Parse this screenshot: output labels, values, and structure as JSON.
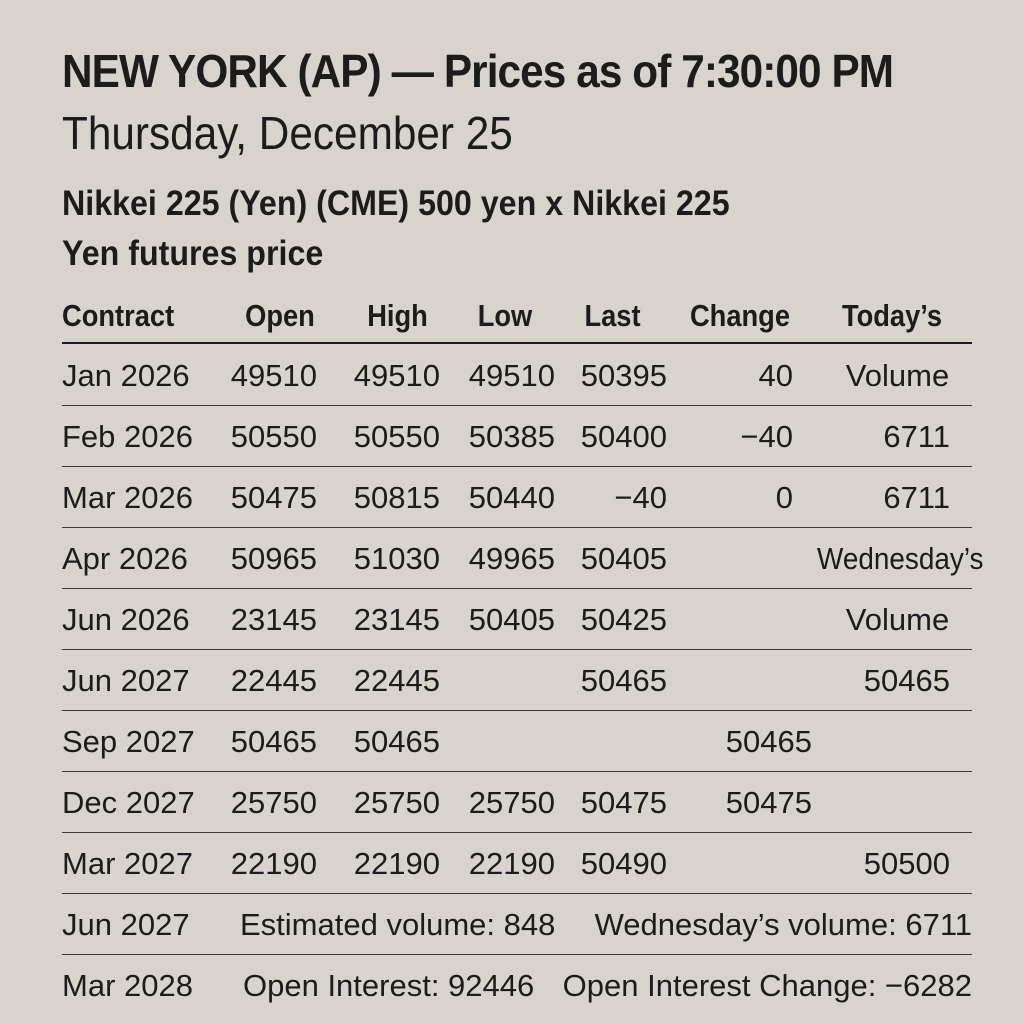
{
  "headline": "NEW YORK (AP) — Prices as of 7:30:00 PM",
  "dateline": "Thursday, December 25",
  "contract_title": "Nikkei 225 (Yen) (CME) 500 yen x Nikkei 225",
  "contract_subtitle": "Yen futures price",
  "columns": {
    "contract": "Contract",
    "open": "Open",
    "high": "High",
    "low": "Low",
    "last": "Last",
    "change": "Change",
    "todays": "Today’s"
  },
  "rows": [
    {
      "contract": "Jan 2026",
      "open": "49510",
      "high": "49510",
      "low": "49510",
      "last": "50395",
      "change": "40",
      "extra": "Volume"
    },
    {
      "contract": "Feb 2026",
      "open": "50550",
      "high": "50550",
      "low": "50385",
      "last": "50400",
      "change": "−40",
      "extra": "6711"
    },
    {
      "contract": "Mar 2026",
      "open": "50475",
      "high": "50815",
      "low": "50440",
      "last": "−40",
      "change": "0",
      "extra": "6711"
    },
    {
      "contract": "Apr 2026",
      "open": "50965",
      "high": "51030",
      "low": "49965",
      "last": "50405",
      "change": "",
      "extra": "Wednesday’s"
    },
    {
      "contract": "Jun 2026",
      "open": "23145",
      "high": "23145",
      "low": "50405",
      "last": "50425",
      "change": "",
      "extra": "Volume"
    },
    {
      "contract": "Jun 2027",
      "open": "22445",
      "high": "22445",
      "low": "",
      "last": "50465",
      "change": "",
      "extra": "50465"
    },
    {
      "contract": "Sep 2027",
      "open": "50465",
      "high": "50465",
      "low": "",
      "last": "",
      "change": "50465",
      "extra": ""
    },
    {
      "contract": "Dec 2027",
      "open": "25750",
      "high": "25750",
      "low": "25750",
      "last": "50475",
      "change": "50475",
      "extra": ""
    },
    {
      "contract": "Mar 2027",
      "open": "22190",
      "high": "22190",
      "low": "22190",
      "last": "50490",
      "change": "",
      "extra": "50500"
    }
  ],
  "footer": [
    {
      "contract": "Jun 2027",
      "left": "Estimated volume: 848",
      "right": "Wednesday’s volume: 6711"
    },
    {
      "contract": "Mar 2028",
      "left": "Open Interest: 92446",
      "right": "Open Interest Change: −6282"
    }
  ]
}
